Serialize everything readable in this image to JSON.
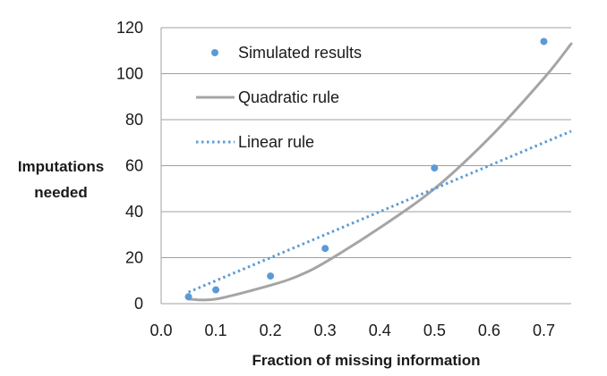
{
  "chart_data": {
    "type": "line",
    "title": "",
    "xlabel": "Fraction of missing information",
    "ylabel_lines": [
      "Imputations",
      "needed"
    ],
    "xlim": [
      0.0,
      0.75
    ],
    "ylim": [
      0,
      120
    ],
    "x_ticks": [
      "0.0",
      "0.1",
      "0.2",
      "0.3",
      "0.4",
      "0.5",
      "0.6",
      "0.7"
    ],
    "y_ticks": [
      "0",
      "20",
      "40",
      "60",
      "80",
      "100",
      "120"
    ],
    "grid": "horizontal",
    "legend_position": "top-left",
    "series": [
      {
        "name": "Simulated results",
        "kind": "scatter",
        "color": "#5b9bd5",
        "x": [
          0.05,
          0.1,
          0.2,
          0.3,
          0.5,
          0.7
        ],
        "y": [
          3,
          6,
          12,
          24,
          59,
          114
        ]
      },
      {
        "name": "Quadratic rule",
        "kind": "line",
        "style": "solid",
        "color": "#a5a5a5",
        "x": [
          0.05,
          0.1,
          0.2,
          0.25,
          0.3,
          0.4,
          0.5,
          0.6,
          0.7,
          0.75
        ],
        "y": [
          2,
          2,
          8,
          12,
          18,
          33,
          50,
          72,
          98,
          113
        ]
      },
      {
        "name": "Linear rule",
        "kind": "line",
        "style": "dotted",
        "color": "#5b9bd5",
        "x": [
          0.05,
          0.75
        ],
        "y": [
          5,
          75
        ]
      }
    ]
  }
}
